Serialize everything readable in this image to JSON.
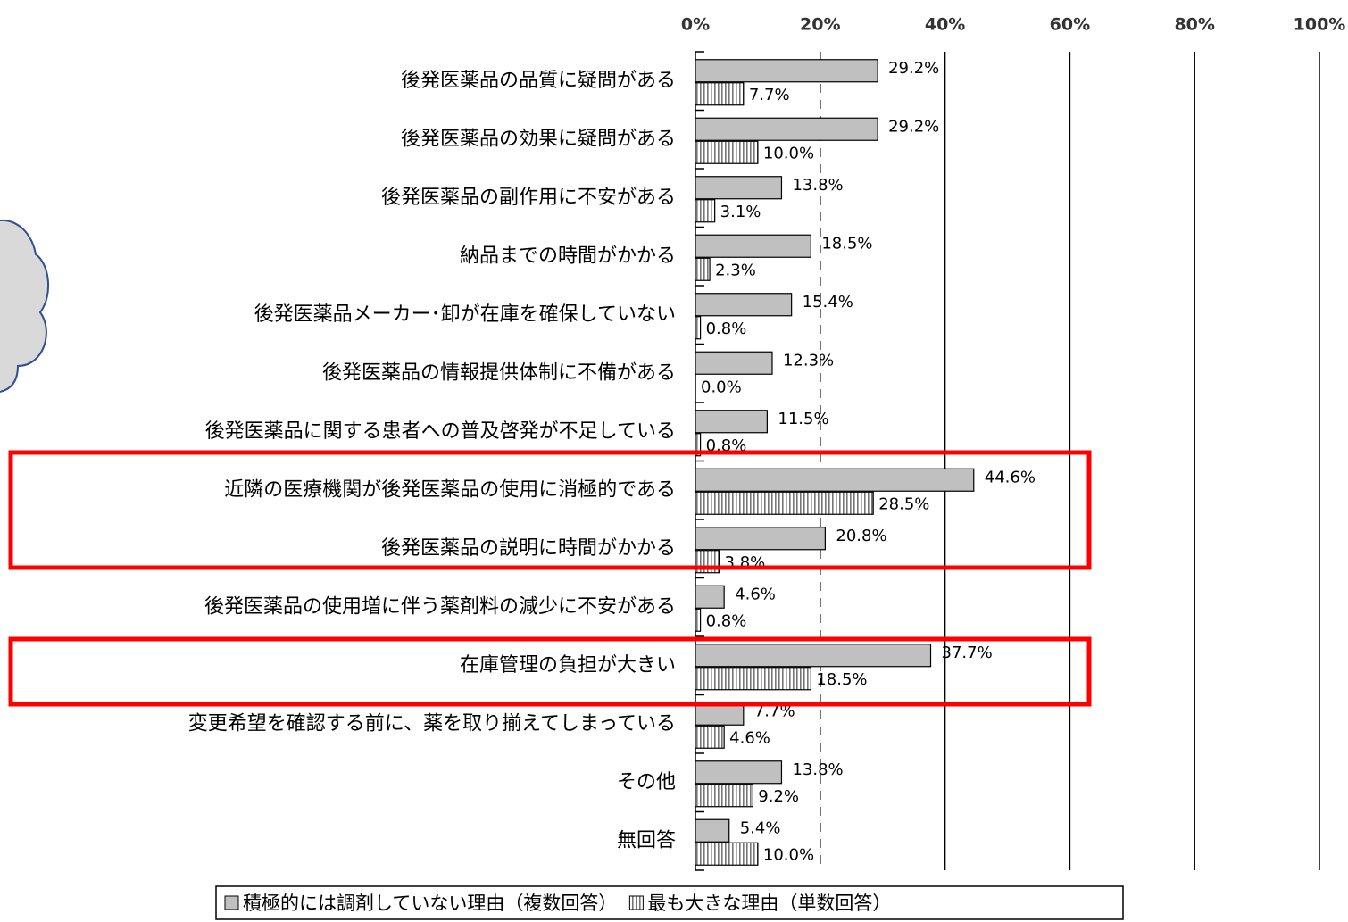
{
  "chart_data": {
    "type": "bar",
    "orientation": "horizontal",
    "categories": [
      "後発医薬品の品質に疑問がある",
      "後発医薬品の効果に疑問がある",
      "後発医薬品の副作用に不安がある",
      "納品までの時間がかかる",
      "後発医薬品メーカー･卸が在庫を確保していない",
      "後発医薬品の情報提供体制に不備がある",
      "後発医薬品に関する患者への普及啓発が不足している",
      "近隣の医療機関が後発医薬品の使用に消極的である",
      "後発医薬品の説明に時間がかかる",
      "後発医薬品の使用増に伴う薬剤料の減少に不安がある",
      "在庫管理の負担が大きい",
      "変更希望を確認する前に、薬を取り揃えてしまっている",
      "その他",
      "無回答"
    ],
    "series": [
      {
        "name": "積極的には調剤していない理由（複数回答）",
        "color": "#c0c0c0",
        "hatch": false,
        "values": [
          29.2,
          29.2,
          13.8,
          18.5,
          15.4,
          12.3,
          11.5,
          44.6,
          20.8,
          4.6,
          37.7,
          7.7,
          13.8,
          5.4
        ],
        "value_labels": [
          "29.2%",
          "29.2%",
          "13.8%",
          "18.5%",
          "15.4%",
          "12.3%",
          "11.5%",
          "44.6%",
          "20.8%",
          "4.6%",
          "37.7%",
          "7.7%",
          "13.8%",
          "5.4%"
        ]
      },
      {
        "name": "最も大きな理由（単数回答）",
        "color": "#808080",
        "hatch": true,
        "values": [
          7.7,
          10.0,
          3.1,
          2.3,
          0.8,
          0.0,
          0.8,
          28.5,
          3.8,
          0.8,
          18.5,
          4.6,
          9.2,
          10.0
        ],
        "value_labels": [
          "7.7%",
          "10.0%",
          "3.1%",
          "2.3%",
          "0.8%",
          "0.0%",
          "0.8%",
          "28.5%",
          "3.8%",
          "0.8%",
          "18.5%",
          "4.6%",
          "9.2%",
          "10.0%"
        ]
      }
    ],
    "xlim": [
      0,
      100
    ],
    "xticks": [
      {
        "value": 0,
        "label": "0%"
      },
      {
        "value": 20,
        "label": "20%"
      },
      {
        "value": 40,
        "label": "40%"
      },
      {
        "value": 60,
        "label": "60%"
      },
      {
        "value": 80,
        "label": "80%"
      },
      {
        "value": 100,
        "label": "100%"
      }
    ],
    "grid": true
  }
}
